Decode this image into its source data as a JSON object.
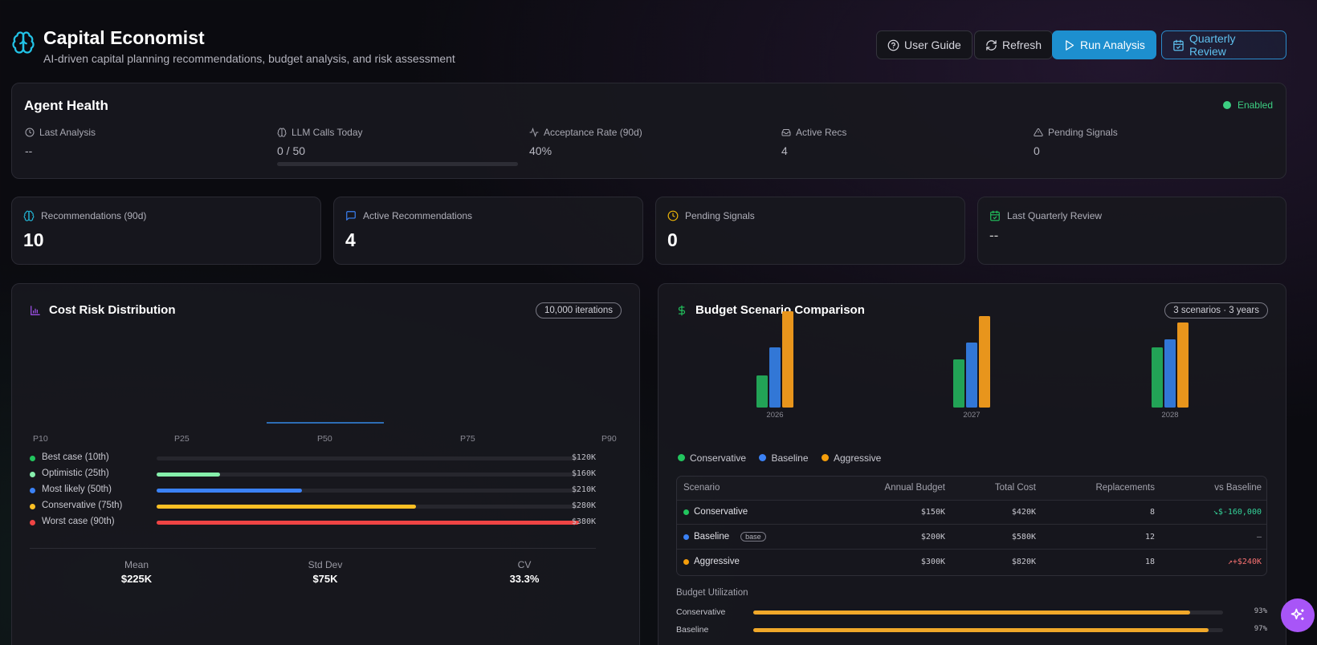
{
  "header": {
    "title": "Capital Economist",
    "subtitle": "AI-driven capital planning recommendations, budget analysis, and risk assessment",
    "buttons": {
      "user_guide": "User Guide",
      "refresh": "Refresh",
      "run_analysis": "Run Analysis",
      "quarterly_review": "Quarterly Review"
    }
  },
  "agent_health": {
    "title": "Agent Health",
    "status": "Enabled",
    "status_color": "#3ccf82",
    "metrics": [
      {
        "label": "Last Analysis",
        "value": "--",
        "icon": "clock-icon"
      },
      {
        "label": "LLM Calls Today",
        "value": "0 / 50",
        "icon": "brain-icon",
        "progress": 0
      },
      {
        "label": "Acceptance Rate (90d)",
        "value": "40%",
        "icon": "activity-icon"
      },
      {
        "label": "Active Recs",
        "value": "4",
        "icon": "inbox-icon"
      },
      {
        "label": "Pending Signals",
        "value": "0",
        "icon": "alert-triangle-icon"
      }
    ]
  },
  "stats": [
    {
      "label": "Recommendations (90d)",
      "value": "10",
      "icon": "brain-icon",
      "color": "#22b8d8"
    },
    {
      "label": "Active Recommendations",
      "value": "4",
      "icon": "message-square-icon",
      "color": "#3b82f6"
    },
    {
      "label": "Pending Signals",
      "value": "0",
      "icon": "clock-icon",
      "color": "#eab308"
    },
    {
      "label": "Last Quarterly Review",
      "value": "--",
      "icon": "calendar-check-icon",
      "color": "#22c55e"
    }
  ],
  "cost_risk": {
    "title": "Cost Risk Distribution",
    "badge": "10,000 iterations",
    "percentiles": [
      "P10",
      "P25",
      "P50",
      "P75",
      "P90"
    ],
    "rows": [
      {
        "label": "Best case (10th)",
        "value": "$120K",
        "color": "#22c55e",
        "fill": 0
      },
      {
        "label": "Optimistic (25th)",
        "value": "$160K",
        "color": "#86efac",
        "fill": 0.15
      },
      {
        "label": "Most likely (50th)",
        "value": "$210K",
        "color": "#3b82f6",
        "fill": 0.345
      },
      {
        "label": "Conservative (75th)",
        "value": "$280K",
        "color": "#fbbf24",
        "fill": 0.615
      },
      {
        "label": "Worst case (90th)",
        "value": "$380K",
        "color": "#ef4444",
        "fill": 1
      }
    ],
    "summary": [
      {
        "label": "Mean",
        "value": "$225K"
      },
      {
        "label": "Std Dev",
        "value": "$75K"
      },
      {
        "label": "CV",
        "value": "33.3%"
      }
    ]
  },
  "budget": {
    "title": "Budget Scenario Comparison",
    "badge": "3 scenarios · 3 years",
    "chart_data": {
      "type": "bar",
      "categories": [
        "2026",
        "2027",
        "2028"
      ],
      "series": [
        {
          "name": "Conservative",
          "color": "#22a356",
          "values": [
            40,
            60,
            75
          ]
        },
        {
          "name": "Baseline",
          "color": "#3277d6",
          "values": [
            75,
            81,
            85
          ]
        },
        {
          "name": "Aggressive",
          "color": "#e8951c",
          "values": [
            120,
            114,
            106
          ]
        }
      ],
      "ylim": [
        0,
        120
      ]
    },
    "table": {
      "headers": [
        "Scenario",
        "Annual Budget",
        "Total Cost",
        "Replacements",
        "vs Baseline"
      ],
      "rows": [
        {
          "scenario": "Conservative",
          "color": "#22c55e",
          "annual": "$150K",
          "total": "$420K",
          "replacements": "8",
          "vs": "$-160,000",
          "vs_color": "#34d399",
          "tag": ""
        },
        {
          "scenario": "Baseline",
          "color": "#3b82f6",
          "annual": "$200K",
          "total": "$580K",
          "replacements": "12",
          "vs": "—",
          "vs_color": "#9a9aa4",
          "tag": "base"
        },
        {
          "scenario": "Aggressive",
          "color": "#f59e0b",
          "annual": "$300K",
          "total": "$820K",
          "replacements": "18",
          "vs": "+$240K",
          "vs_color": "#f87171",
          "tag": ""
        }
      ]
    },
    "utilization": {
      "title": "Budget Utilization",
      "rows": [
        {
          "label": "Conservative",
          "value": "93%",
          "fraction": 0.93
        },
        {
          "label": "Baseline",
          "value": "97%",
          "fraction": 0.97
        }
      ]
    }
  }
}
